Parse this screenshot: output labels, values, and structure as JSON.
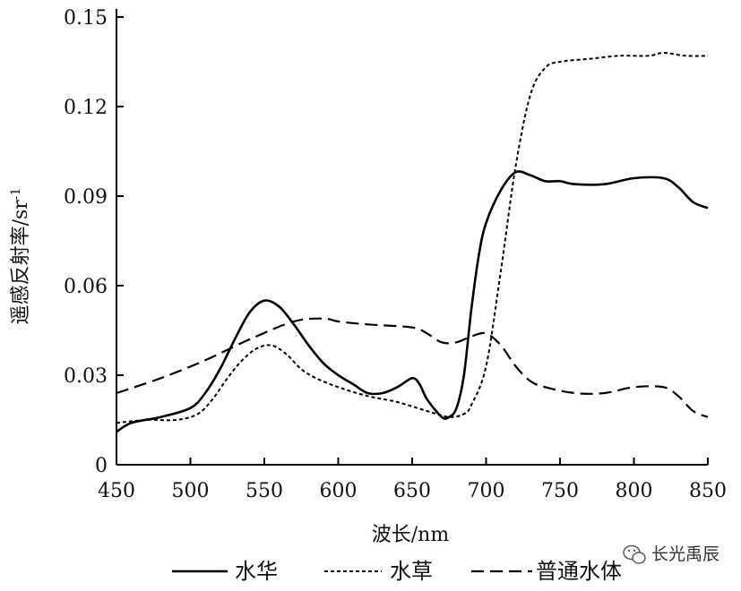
{
  "chart_data": {
    "type": "line",
    "title": "",
    "xlabel": "波长/nm",
    "ylabel": "遥感反射率/sr",
    "ylabel_superscript": "-1",
    "xlim": [
      450,
      850
    ],
    "ylim": [
      0,
      0.15
    ],
    "xticks": [
      450,
      500,
      550,
      600,
      650,
      700,
      750,
      800,
      850
    ],
    "yticks": [
      0,
      0.03,
      0.06,
      0.09,
      0.12,
      0.15
    ],
    "ytick_labels": [
      "0",
      "0.03",
      "0.06",
      "0.09",
      "0.12",
      "0.15"
    ],
    "grid": false,
    "legend_position": "bottom",
    "series": [
      {
        "name": "水华",
        "style": "solid",
        "color": "#000000",
        "points": [
          [
            450,
            0.011
          ],
          [
            460,
            0.014
          ],
          [
            480,
            0.016
          ],
          [
            500,
            0.019
          ],
          [
            510,
            0.024
          ],
          [
            520,
            0.032
          ],
          [
            530,
            0.042
          ],
          [
            540,
            0.051
          ],
          [
            550,
            0.055
          ],
          [
            560,
            0.053
          ],
          [
            570,
            0.047
          ],
          [
            580,
            0.04
          ],
          [
            590,
            0.034
          ],
          [
            600,
            0.03
          ],
          [
            610,
            0.027
          ],
          [
            620,
            0.024
          ],
          [
            630,
            0.024
          ],
          [
            640,
            0.026
          ],
          [
            650,
            0.029
          ],
          [
            655,
            0.027
          ],
          [
            660,
            0.022
          ],
          [
            670,
            0.016
          ],
          [
            675,
            0.016
          ],
          [
            680,
            0.019
          ],
          [
            685,
            0.03
          ],
          [
            690,
            0.052
          ],
          [
            695,
            0.07
          ],
          [
            700,
            0.081
          ],
          [
            710,
            0.092
          ],
          [
            720,
            0.098
          ],
          [
            730,
            0.097
          ],
          [
            740,
            0.095
          ],
          [
            750,
            0.095
          ],
          [
            760,
            0.094
          ],
          [
            780,
            0.094
          ],
          [
            800,
            0.096
          ],
          [
            820,
            0.096
          ],
          [
            830,
            0.093
          ],
          [
            840,
            0.088
          ],
          [
            850,
            0.086
          ]
        ]
      },
      {
        "name": "水草",
        "style": "dotted",
        "color": "#000000",
        "points": [
          [
            450,
            0.014
          ],
          [
            470,
            0.015
          ],
          [
            490,
            0.015
          ],
          [
            505,
            0.017
          ],
          [
            515,
            0.022
          ],
          [
            525,
            0.029
          ],
          [
            535,
            0.035
          ],
          [
            545,
            0.039
          ],
          [
            555,
            0.04
          ],
          [
            565,
            0.037
          ],
          [
            575,
            0.032
          ],
          [
            585,
            0.029
          ],
          [
            600,
            0.026
          ],
          [
            620,
            0.023
          ],
          [
            640,
            0.021
          ],
          [
            660,
            0.018
          ],
          [
            675,
            0.016
          ],
          [
            685,
            0.017
          ],
          [
            690,
            0.02
          ],
          [
            700,
            0.033
          ],
          [
            710,
            0.065
          ],
          [
            720,
            0.1
          ],
          [
            730,
            0.124
          ],
          [
            740,
            0.133
          ],
          [
            750,
            0.135
          ],
          [
            770,
            0.136
          ],
          [
            790,
            0.137
          ],
          [
            810,
            0.137
          ],
          [
            820,
            0.138
          ],
          [
            835,
            0.137
          ],
          [
            850,
            0.137
          ]
        ]
      },
      {
        "name": "普通水体",
        "style": "dashed",
        "color": "#000000",
        "points": [
          [
            450,
            0.024
          ],
          [
            480,
            0.029
          ],
          [
            510,
            0.035
          ],
          [
            540,
            0.042
          ],
          [
            570,
            0.048
          ],
          [
            590,
            0.049
          ],
          [
            600,
            0.048
          ],
          [
            620,
            0.047
          ],
          [
            650,
            0.046
          ],
          [
            660,
            0.044
          ],
          [
            670,
            0.041
          ],
          [
            680,
            0.041
          ],
          [
            690,
            0.043
          ],
          [
            700,
            0.044
          ],
          [
            710,
            0.04
          ],
          [
            720,
            0.033
          ],
          [
            730,
            0.028
          ],
          [
            740,
            0.026
          ],
          [
            760,
            0.024
          ],
          [
            780,
            0.024
          ],
          [
            800,
            0.026
          ],
          [
            820,
            0.026
          ],
          [
            830,
            0.023
          ],
          [
            840,
            0.018
          ],
          [
            850,
            0.016
          ]
        ]
      }
    ]
  },
  "watermark": {
    "text": "长光禹辰",
    "icon": "wechat-icon"
  }
}
